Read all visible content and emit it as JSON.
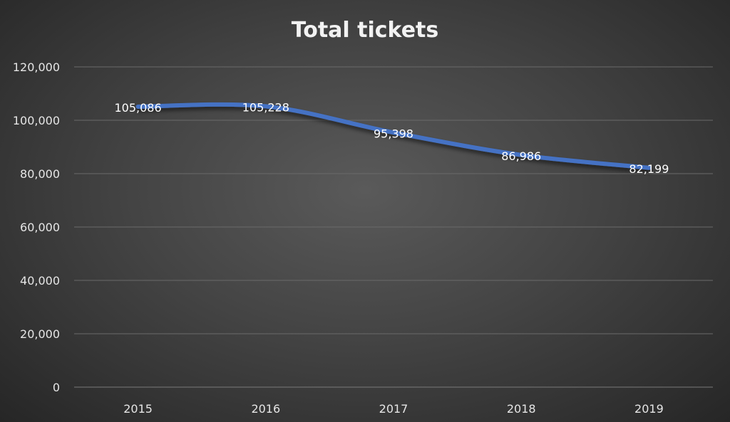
{
  "chart_data": {
    "type": "line",
    "title": "Total tickets",
    "xlabel": "",
    "ylabel": "",
    "categories": [
      "2015",
      "2016",
      "2017",
      "2018",
      "2019"
    ],
    "series": [
      {
        "name": "Total tickets",
        "values": [
          105086,
          105228,
          95398,
          86986,
          82199
        ],
        "color": "#4472C4"
      }
    ],
    "data_labels": [
      "105,086",
      "105,228",
      "95,398",
      "86,986",
      "82,199"
    ],
    "ylim": [
      0,
      120000
    ],
    "yticks": [
      0,
      20000,
      40000,
      60000,
      80000,
      100000,
      120000
    ],
    "ytick_labels": [
      "0",
      "20,000",
      "40,000",
      "60,000",
      "80,000",
      "100,000",
      "120,000"
    ],
    "grid": true,
    "legend": "none",
    "smooth": true
  }
}
